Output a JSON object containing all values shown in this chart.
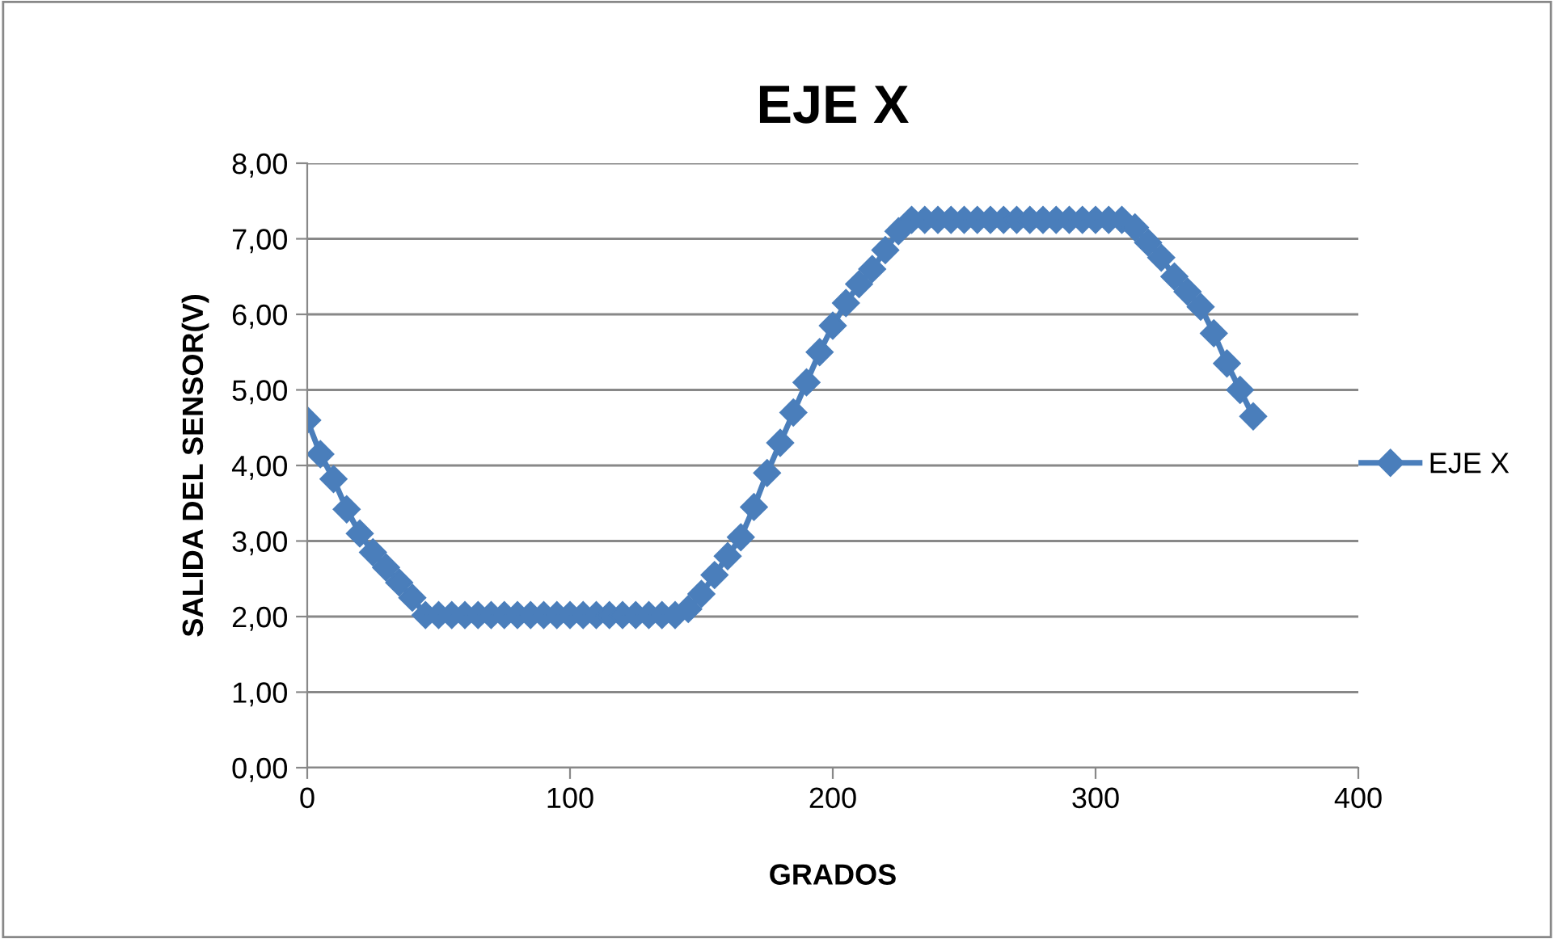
{
  "chart_data": {
    "type": "line",
    "title": "EJE X",
    "xlabel": "GRADOS",
    "ylabel": "SALIDA DEL SENSOR(V)",
    "x": [
      0,
      5,
      10,
      15,
      20,
      25,
      30,
      35,
      40,
      45,
      50,
      55,
      60,
      65,
      70,
      75,
      80,
      85,
      90,
      95,
      100,
      105,
      110,
      115,
      120,
      125,
      130,
      135,
      140,
      145,
      150,
      155,
      160,
      165,
      170,
      175,
      180,
      185,
      190,
      195,
      200,
      205,
      210,
      215,
      220,
      225,
      230,
      235,
      240,
      245,
      250,
      255,
      260,
      265,
      270,
      275,
      280,
      285,
      290,
      295,
      300,
      305,
      310,
      315,
      320,
      325,
      330,
      335,
      340,
      345,
      350,
      355,
      360
    ],
    "series": [
      {
        "name": "EJE X",
        "color": "#4a7ebb",
        "values": [
          4.6,
          4.15,
          3.82,
          3.42,
          3.1,
          2.85,
          2.65,
          2.45,
          2.25,
          2.02,
          2.02,
          2.02,
          2.02,
          2.02,
          2.02,
          2.02,
          2.02,
          2.02,
          2.02,
          2.02,
          2.02,
          2.02,
          2.02,
          2.02,
          2.02,
          2.02,
          2.02,
          2.02,
          2.02,
          2.1,
          2.3,
          2.55,
          2.8,
          3.05,
          3.45,
          3.9,
          4.3,
          4.7,
          5.1,
          5.5,
          5.85,
          6.15,
          6.4,
          6.6,
          6.85,
          7.1,
          7.25,
          7.25,
          7.25,
          7.25,
          7.25,
          7.25,
          7.25,
          7.25,
          7.25,
          7.25,
          7.25,
          7.25,
          7.25,
          7.25,
          7.25,
          7.25,
          7.25,
          7.15,
          6.95,
          6.75,
          6.5,
          6.3,
          6.1,
          5.75,
          5.35,
          5.0,
          4.65
        ]
      }
    ],
    "xlim": [
      0,
      400
    ],
    "xticks": [
      0,
      100,
      200,
      300,
      400
    ],
    "ylim": [
      0,
      8
    ],
    "yticks": [
      {
        "value": 0,
        "label": "0,00"
      },
      {
        "value": 1,
        "label": "1,00"
      },
      {
        "value": 2,
        "label": "2,00"
      },
      {
        "value": 3,
        "label": "3,00"
      },
      {
        "value": 4,
        "label": "4,00"
      },
      {
        "value": 5,
        "label": "5,00"
      },
      {
        "value": 6,
        "label": "6,00"
      },
      {
        "value": 7,
        "label": "7,00"
      },
      {
        "value": 8,
        "label": "8,00"
      }
    ],
    "grid": "y",
    "legend": "right",
    "marker": "diamond",
    "line_style": "solid"
  }
}
